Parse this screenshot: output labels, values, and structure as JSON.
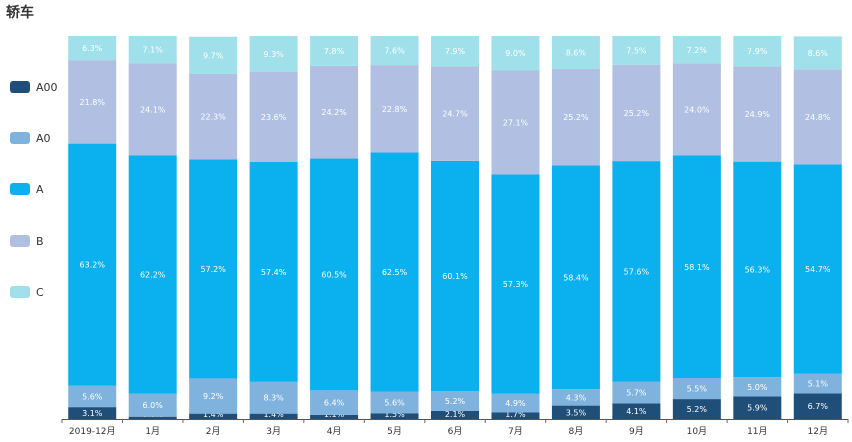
{
  "chart_data": {
    "type": "bar",
    "stacked": true,
    "title": "轿车",
    "legend_position": "left",
    "ylim": [
      0,
      100
    ],
    "categories": [
      "2019-12月",
      "1月",
      "2月",
      "3月",
      "4月",
      "5月",
      "6月",
      "7月",
      "8月",
      "9月",
      "10月",
      "11月",
      "12月"
    ],
    "series": [
      {
        "name": "A00",
        "color": "#1f4e79",
        "values": [
          3.1,
          0.6,
          1.4,
          1.4,
          1.1,
          1.5,
          2.1,
          1.7,
          3.5,
          4.1,
          5.2,
          5.9,
          6.7
        ]
      },
      {
        "name": "A0",
        "color": "#7fb2dc",
        "values": [
          5.6,
          6.0,
          9.2,
          8.3,
          6.4,
          5.6,
          5.2,
          4.9,
          4.3,
          5.7,
          5.5,
          5.0,
          5.1
        ]
      },
      {
        "name": "A",
        "color": "#0bb0ee",
        "values": [
          63.2,
          62.2,
          57.2,
          57.4,
          60.5,
          62.5,
          60.1,
          57.3,
          58.4,
          57.6,
          58.1,
          56.3,
          54.7
        ]
      },
      {
        "name": "B",
        "color": "#b0bfe2",
        "values": [
          21.8,
          24.1,
          22.3,
          23.6,
          24.2,
          22.8,
          24.7,
          27.1,
          25.2,
          25.2,
          24.0,
          24.9,
          24.8
        ]
      },
      {
        "name": "C",
        "color": "#9fe0ea",
        "values": [
          6.3,
          7.1,
          9.7,
          9.3,
          7.8,
          7.6,
          7.9,
          9.0,
          8.6,
          7.5,
          7.2,
          7.9,
          8.6
        ]
      }
    ],
    "labels": [
      [
        "3.1%",
        "0.6%",
        "1.4%",
        "1.4%",
        "1.1%",
        "1.5%",
        "2.1%",
        "1.7%",
        "3.5%",
        "4.1%",
        "5.2%",
        "5.9%",
        "6.7%"
      ],
      [
        "5.6%",
        "6.0%",
        "9.2%",
        "8.3%",
        "6.4%",
        "5.6%",
        "5.2%",
        "4.9%",
        "4.3%",
        "5.7%",
        "5.5%",
        "5.0%",
        "5.1%"
      ],
      [
        "63.2%",
        "62.2%",
        "57.2%",
        "57.4%",
        "60.5%",
        "62.5%",
        "60.1%",
        "57.3%",
        "58.4%",
        "57.6%",
        "58.1%",
        "56.3%",
        "54.7%"
      ],
      [
        "21.8%",
        "24.1%",
        "22.3%",
        "23.6%",
        "24.2%",
        "22.8%",
        "24.7%",
        "27.1%",
        "25.2%",
        "25.2%",
        "24.0%",
        "24.9%",
        "24.8%"
      ],
      [
        "6.3%",
        "7.1%",
        "9.7%",
        "9.3%",
        "7.8%",
        "7.6%",
        "7.9%",
        "9.0%",
        "8.6%",
        "7.5%",
        "7.2%",
        "7.9%",
        "8.6%"
      ]
    ]
  }
}
